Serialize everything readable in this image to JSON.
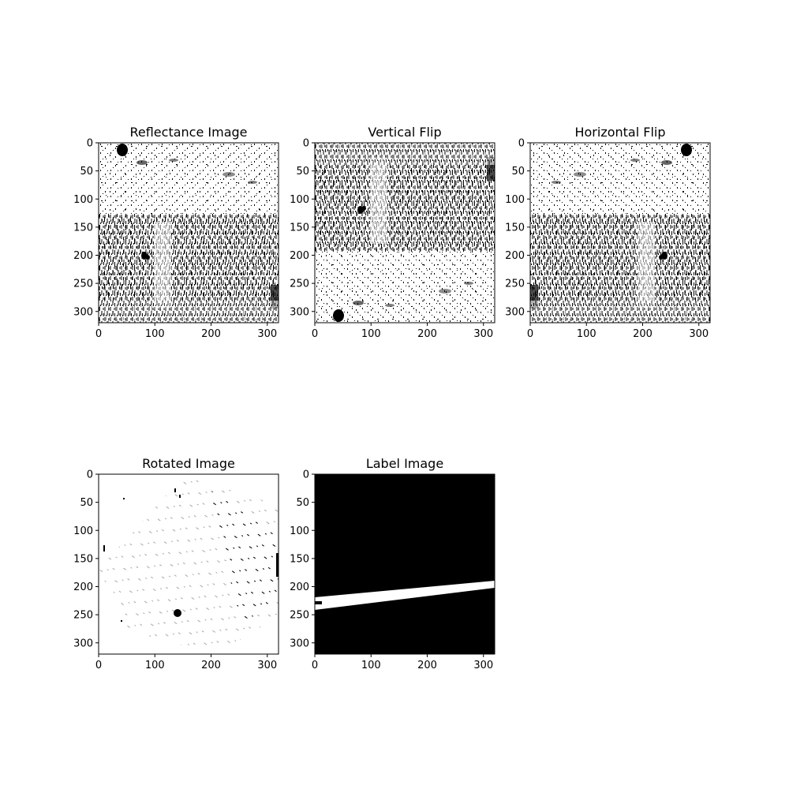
{
  "figure": {
    "background": "#ffffff",
    "panels": [
      {
        "id": "reflectance",
        "title": "Reflectance Image",
        "image_content": "reflectance-texture",
        "xticks": [
          "0",
          "100",
          "200",
          "300"
        ],
        "yticks": [
          "0",
          "50",
          "100",
          "150",
          "200",
          "250",
          "300"
        ]
      },
      {
        "id": "vertical-flip",
        "title": "Vertical Flip",
        "image_content": "reflectance-texture-flipped-vertically",
        "xticks": [
          "0",
          "100",
          "200",
          "300"
        ],
        "yticks": [
          "0",
          "50",
          "100",
          "150",
          "200",
          "250",
          "300"
        ]
      },
      {
        "id": "horizontal-flip",
        "title": "Horizontal Flip",
        "image_content": "reflectance-texture-flipped-horizontally",
        "xticks": [
          "0",
          "100",
          "200",
          "300"
        ],
        "yticks": [
          "0",
          "50",
          "100",
          "150",
          "200",
          "250",
          "300"
        ]
      },
      {
        "id": "rotated",
        "title": "Rotated Image",
        "image_content": "sparse-rotated-texture",
        "xticks": [
          "0",
          "100",
          "200",
          "300"
        ],
        "yticks": [
          "0",
          "50",
          "100",
          "150",
          "200",
          "250",
          "300"
        ]
      },
      {
        "id": "label",
        "title": "Label Image",
        "image_content": "binary-label-mask",
        "xticks": [
          "0",
          "100",
          "200",
          "300"
        ],
        "yticks": [
          "0",
          "50",
          "100",
          "150",
          "200",
          "250",
          "300"
        ]
      }
    ],
    "colors": {
      "foreground": "#000000",
      "background": "#ffffff"
    }
  }
}
